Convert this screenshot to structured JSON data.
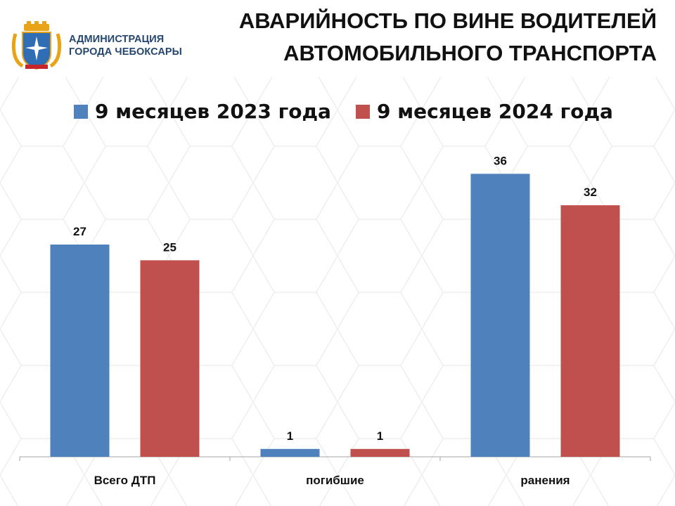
{
  "header": {
    "org_line_1": "АДМИНИСТРАЦИЯ",
    "org_line_2": "ГОРОДА ЧЕБОКСАРЫ",
    "title_line_1": "АВАРИЙНОСТЬ ПО ВИНЕ ВОДИТЕЛЕЙ",
    "title_line_2": "АВТОМОБИЛЬНОГО ТРАНСПОРТА"
  },
  "colors": {
    "series_2023": "#4f81bd",
    "series_2024": "#c0504d",
    "logo_shield": "#2f6db5",
    "logo_gold": "#e8a317",
    "logo_red": "#c8242b"
  },
  "icons": {
    "logo": "cheboksary-coat-of-arms"
  },
  "chart_data": {
    "type": "bar",
    "categories": [
      "Всего ДТП",
      "погибшие",
      "ранения"
    ],
    "series": [
      {
        "name": "9 месяцев 2023 года",
        "values": [
          27,
          1,
          36
        ]
      },
      {
        "name": "9 месяцев 2024 года",
        "values": [
          25,
          1,
          32
        ]
      }
    ],
    "ylim": [
      0,
      42
    ],
    "grid": false,
    "legend": "top",
    "data_labels": true
  }
}
